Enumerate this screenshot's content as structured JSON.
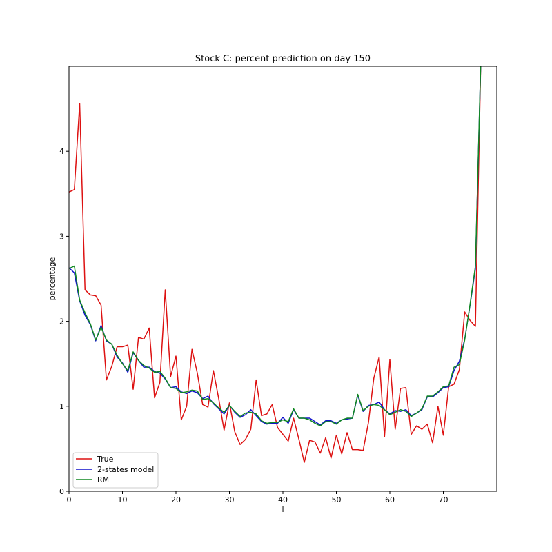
{
  "chart_data": {
    "type": "line",
    "title": "Stock C: percent prediction on day 150",
    "xlabel": "l",
    "ylabel": "percentage",
    "xlim": [
      0,
      80
    ],
    "ylim": [
      0,
      5
    ],
    "xticks": [
      0,
      10,
      20,
      30,
      40,
      50,
      60,
      70
    ],
    "yticks": [
      0,
      1,
      2,
      3,
      4
    ],
    "grid": false,
    "legend_position": "lower-left",
    "x": [
      0,
      1,
      2,
      3,
      4,
      5,
      6,
      7,
      8,
      9,
      10,
      11,
      12,
      13,
      14,
      15,
      16,
      17,
      18,
      19,
      20,
      21,
      22,
      23,
      24,
      25,
      26,
      27,
      28,
      29,
      30,
      31,
      32,
      33,
      34,
      35,
      36,
      37,
      38,
      39,
      40,
      41,
      42,
      43,
      44,
      45,
      46,
      47,
      48,
      49,
      50,
      51,
      52,
      53,
      54,
      55,
      56,
      57,
      58,
      59,
      60,
      61,
      62,
      63,
      64,
      65,
      66,
      67,
      68,
      69,
      70,
      71,
      72,
      73,
      74,
      75,
      76,
      77
    ],
    "series": [
      {
        "name": "True",
        "color": "#dd1111",
        "values": [
          3.52,
          3.55,
          4.56,
          2.37,
          2.31,
          2.3,
          2.19,
          1.31,
          1.47,
          1.7,
          1.7,
          1.72,
          1.2,
          1.81,
          1.79,
          1.92,
          1.1,
          1.28,
          2.37,
          1.35,
          1.59,
          0.84,
          1.0,
          1.67,
          1.39,
          1.02,
          0.99,
          1.42,
          1.09,
          0.72,
          1.04,
          0.7,
          0.55,
          0.61,
          0.73,
          1.31,
          0.89,
          0.91,
          1.02,
          0.75,
          0.67,
          0.59,
          0.86,
          0.61,
          0.34,
          0.6,
          0.58,
          0.45,
          0.63,
          0.39,
          0.66,
          0.44,
          0.69,
          0.49,
          0.49,
          0.48,
          0.81,
          1.33,
          1.58,
          0.64,
          1.55,
          0.73,
          1.21,
          1.22,
          0.67,
          0.77,
          0.73,
          0.79,
          0.57,
          1.0,
          0.66,
          1.23,
          1.26,
          1.43,
          2.11,
          2.01,
          1.94,
          5.05
        ]
      },
      {
        "name": "2-states model",
        "color": "#1111cc",
        "values": [
          2.63,
          2.57,
          2.24,
          2.07,
          1.96,
          1.77,
          1.95,
          1.77,
          1.73,
          1.58,
          1.51,
          1.4,
          1.63,
          1.54,
          1.46,
          1.46,
          1.41,
          1.39,
          1.32,
          1.22,
          1.23,
          1.17,
          1.15,
          1.18,
          1.16,
          1.09,
          1.12,
          1.03,
          0.97,
          0.91,
          1.01,
          0.93,
          0.87,
          0.9,
          0.96,
          0.89,
          0.82,
          0.79,
          0.8,
          0.8,
          0.87,
          0.8,
          0.96,
          0.86,
          0.86,
          0.86,
          0.82,
          0.78,
          0.83,
          0.83,
          0.8,
          0.84,
          0.85,
          0.86,
          1.13,
          0.94,
          1.01,
          1.02,
          1.05,
          0.96,
          0.91,
          0.95,
          0.94,
          0.96,
          0.89,
          0.92,
          0.96,
          1.11,
          1.11,
          1.16,
          1.22,
          1.23,
          1.42,
          1.53,
          1.79,
          2.19,
          2.62,
          5.05
        ]
      },
      {
        "name": "RM",
        "color": "#118822",
        "values": [
          2.62,
          2.65,
          2.25,
          2.1,
          1.97,
          1.78,
          1.93,
          1.78,
          1.73,
          1.6,
          1.5,
          1.42,
          1.64,
          1.54,
          1.48,
          1.45,
          1.4,
          1.41,
          1.33,
          1.22,
          1.21,
          1.16,
          1.17,
          1.19,
          1.18,
          1.08,
          1.09,
          1.04,
          0.98,
          0.93,
          1.01,
          0.94,
          0.88,
          0.92,
          0.93,
          0.91,
          0.83,
          0.8,
          0.81,
          0.81,
          0.84,
          0.82,
          0.97,
          0.86,
          0.86,
          0.84,
          0.8,
          0.77,
          0.82,
          0.82,
          0.79,
          0.84,
          0.86,
          0.86,
          1.14,
          0.95,
          1.0,
          1.02,
          1.01,
          0.96,
          0.9,
          0.93,
          0.96,
          0.94,
          0.88,
          0.92,
          0.97,
          1.12,
          1.12,
          1.17,
          1.23,
          1.24,
          1.46,
          1.49,
          1.78,
          2.2,
          2.65,
          5.05
        ]
      }
    ]
  }
}
